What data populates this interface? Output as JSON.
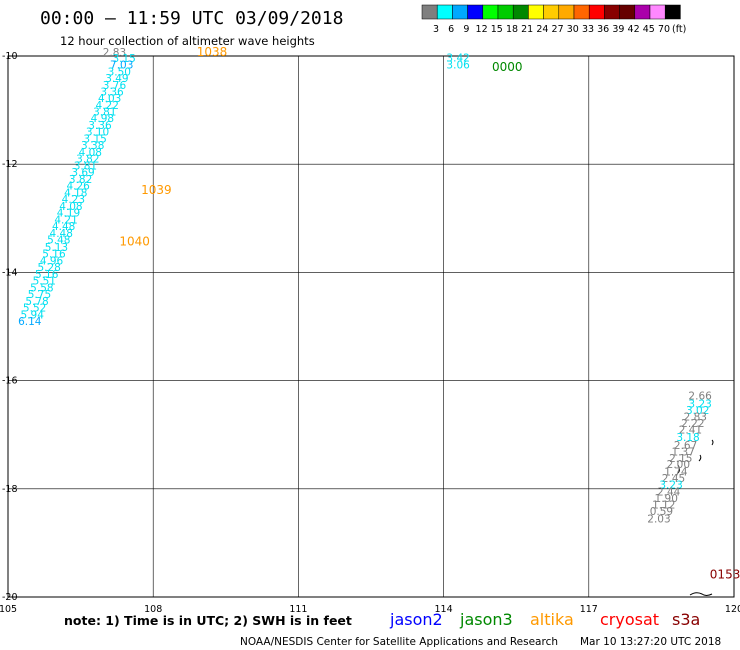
{
  "header": {
    "title": "00:00 – 11:59 UTC 03/09/2018",
    "subtitle": "12 hour collection of altimeter wave heights"
  },
  "colorbar": {
    "labels": [
      "3",
      "6",
      "9",
      "12",
      "15",
      "18",
      "21",
      "24",
      "27",
      "30",
      "33",
      "36",
      "39",
      "42",
      "45",
      "70",
      "(ft)"
    ],
    "colors": [
      "#7f7f7f",
      "#00ffff",
      "#00a8ff",
      "#0000ff",
      "#00ff00",
      "#00cc00",
      "#008800",
      "#ffff00",
      "#ffcc00",
      "#ffaa00",
      "#ff6600",
      "#ff0000",
      "#880000",
      "#660000",
      "#aa00aa",
      "#ff88ff",
      "#000000"
    ]
  },
  "axes": {
    "x_ticks": [
      "105",
      "108",
      "111",
      "114",
      "117",
      "120"
    ],
    "y_ticks": [
      "-10",
      "-12",
      "-14",
      "-16",
      "-18",
      "-20"
    ]
  },
  "footer": {
    "note": "note: 1) Time is in UTC; 2) SWH is in feet",
    "legend": [
      {
        "name": "jason2",
        "color": "#0000ff"
      },
      {
        "name": "jason3",
        "color": "#008800"
      },
      {
        "name": "altika",
        "color": "#ff9900"
      },
      {
        "name": "cryosat",
        "color": "#ff0000"
      },
      {
        "name": "s3a",
        "color": "#880000"
      }
    ],
    "credit": "NOAA/NESDIS Center for Satellite Applications and Research",
    "timestamp": "Mar 10 13:27:20 UTC 2018"
  },
  "chart_data": {
    "type": "scatter",
    "xlim": [
      105,
      120
    ],
    "ylim": [
      -20,
      -10
    ],
    "xlabel": "",
    "ylabel": "",
    "grid": true,
    "tracks": [
      {
        "satellite": "altika",
        "time_label": "1038",
        "time_at": {
          "lon": 108.9,
          "lat": -10.0
        },
        "points": [
          {
            "lon": 107.2,
            "lat": -10.0,
            "swh": "2.83"
          },
          {
            "lon": 107.4,
            "lat": -10.11,
            "swh": "3.15"
          },
          {
            "lon": 107.35,
            "lat": -10.23,
            "swh": "7.03"
          },
          {
            "lon": 107.3,
            "lat": -10.36,
            "swh": "3.50"
          },
          {
            "lon": 107.25,
            "lat": -10.48,
            "swh": "3.49"
          },
          {
            "lon": 107.2,
            "lat": -10.61,
            "swh": "3.76"
          },
          {
            "lon": 107.15,
            "lat": -10.73,
            "swh": "3.36"
          },
          {
            "lon": 107.1,
            "lat": -10.85,
            "swh": "4.03"
          },
          {
            "lon": 107.05,
            "lat": -10.98,
            "swh": "4.22"
          },
          {
            "lon": 107.0,
            "lat": -11.1,
            "swh": "3.81"
          },
          {
            "lon": 106.95,
            "lat": -11.22,
            "swh": "4.98"
          },
          {
            "lon": 106.9,
            "lat": -11.35,
            "swh": "3.36"
          },
          {
            "lon": 106.85,
            "lat": -11.47,
            "swh": "3.10"
          },
          {
            "lon": 106.8,
            "lat": -11.6,
            "swh": "3.15"
          },
          {
            "lon": 106.75,
            "lat": -11.72,
            "swh": "3.38"
          },
          {
            "lon": 106.7,
            "lat": -11.85,
            "swh": "4.08"
          },
          {
            "lon": 106.65,
            "lat": -11.97,
            "swh": "3.82"
          }
        ]
      },
      {
        "satellite": "altika",
        "time_label": "1039",
        "time_at": {
          "lon": 107.75,
          "lat": -12.55
        },
        "points": [
          {
            "lon": 106.6,
            "lat": -12.1,
            "swh": "3.81"
          },
          {
            "lon": 106.55,
            "lat": -12.22,
            "swh": "3.69"
          },
          {
            "lon": 106.5,
            "lat": -12.35,
            "swh": "3.82"
          },
          {
            "lon": 106.45,
            "lat": -12.47,
            "swh": "4.26"
          },
          {
            "lon": 106.4,
            "lat": -12.6,
            "swh": "4.18"
          },
          {
            "lon": 106.35,
            "lat": -12.72,
            "swh": "4.23"
          },
          {
            "lon": 106.3,
            "lat": -12.85,
            "swh": "4.08"
          },
          {
            "lon": 106.25,
            "lat": -12.97,
            "swh": "4.19"
          },
          {
            "lon": 106.2,
            "lat": -13.1,
            "swh": "4.21"
          },
          {
            "lon": 106.15,
            "lat": -13.22,
            "swh": "4.48"
          },
          {
            "lon": 106.1,
            "lat": -13.35,
            "swh": "4.48"
          },
          {
            "lon": 106.05,
            "lat": -13.47,
            "swh": "5.48"
          },
          {
            "lon": 106.0,
            "lat": -13.6,
            "swh": "5.13"
          },
          {
            "lon": 105.95,
            "lat": -13.72,
            "swh": "5.16"
          },
          {
            "lon": 105.9,
            "lat": -13.85,
            "swh": "4.96"
          },
          {
            "lon": 105.85,
            "lat": -13.97,
            "swh": "5.28"
          },
          {
            "lon": 105.8,
            "lat": -14.1,
            "swh": "5.16"
          },
          {
            "lon": 105.75,
            "lat": -14.22,
            "swh": "5.51"
          },
          {
            "lon": 105.7,
            "lat": -14.35,
            "swh": "5.58"
          },
          {
            "lon": 105.65,
            "lat": -14.47,
            "swh": "5.75"
          },
          {
            "lon": 105.6,
            "lat": -14.6,
            "swh": "5.78"
          },
          {
            "lon": 105.55,
            "lat": -14.72,
            "swh": "5.52"
          },
          {
            "lon": 105.5,
            "lat": -14.85,
            "swh": "5.94"
          },
          {
            "lon": 105.45,
            "lat": -14.97,
            "swh": "6.14"
          }
        ]
      },
      {
        "satellite": "altika",
        "time_label": "1040",
        "time_at": {
          "lon": 107.3,
          "lat": -13.5
        },
        "points": []
      },
      {
        "satellite": "jason3",
        "time_label": "0000",
        "time_at": {
          "lon": 115.0,
          "lat": -10.28
        },
        "points": [
          {
            "lon": 114.3,
            "lat": -10.1,
            "swh": "3.42"
          },
          {
            "lon": 114.3,
            "lat": -10.23,
            "swh": "3.06"
          }
        ]
      },
      {
        "satellite": "s3a",
        "time_label": "0153",
        "time_at": {
          "lon": 119.5,
          "lat": -19.66
        },
        "points": [
          {
            "lon": 119.3,
            "lat": -16.35,
            "swh": "2.66"
          },
          {
            "lon": 119.3,
            "lat": -16.5,
            "swh": "3.23"
          },
          {
            "lon": 119.25,
            "lat": -16.62,
            "swh": "3.02"
          },
          {
            "lon": 119.2,
            "lat": -16.74,
            "swh": "2.83"
          },
          {
            "lon": 119.15,
            "lat": -16.86,
            "swh": "2.22"
          },
          {
            "lon": 119.1,
            "lat": -16.98,
            "swh": "2.41"
          },
          {
            "lon": 119.05,
            "lat": -17.12,
            "swh": "3.18"
          },
          {
            "lon": 119.0,
            "lat": -17.26,
            "swh": "2.67"
          },
          {
            "lon": 118.95,
            "lat": -17.38,
            "swh": "1.37"
          },
          {
            "lon": 118.9,
            "lat": -17.5,
            "swh": "2.15"
          },
          {
            "lon": 118.85,
            "lat": -17.62,
            "swh": "2.00"
          },
          {
            "lon": 118.8,
            "lat": -17.75,
            "swh": "1.74"
          },
          {
            "lon": 118.75,
            "lat": -17.87,
            "swh": "2.45"
          },
          {
            "lon": 118.7,
            "lat": -17.99,
            "swh": "3.23"
          },
          {
            "lon": 118.65,
            "lat": -18.12,
            "swh": "2.44"
          },
          {
            "lon": 118.6,
            "lat": -18.24,
            "swh": "1.90"
          },
          {
            "lon": 118.55,
            "lat": -18.36,
            "swh": "1.12"
          },
          {
            "lon": 118.5,
            "lat": -18.48,
            "swh": "0.59"
          },
          {
            "lon": 118.45,
            "lat": -18.62,
            "swh": "2.03"
          }
        ]
      }
    ]
  }
}
